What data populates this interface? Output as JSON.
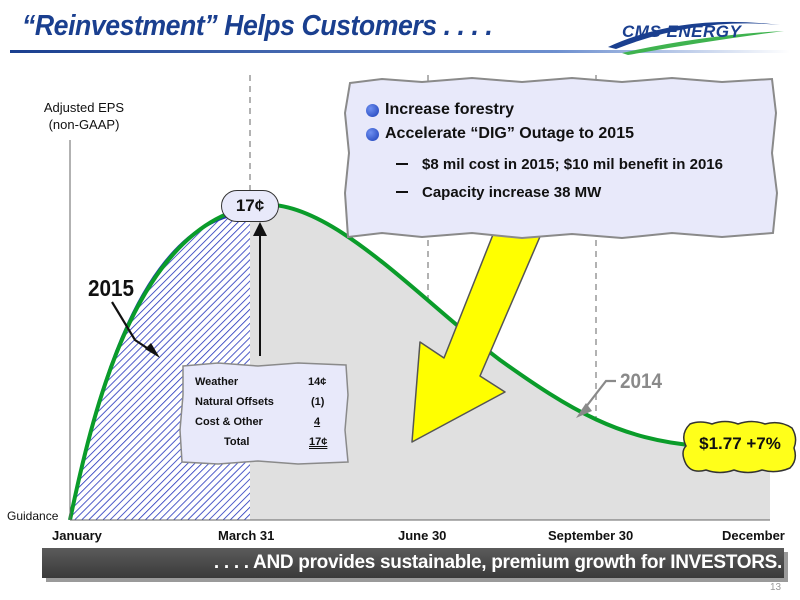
{
  "header": {
    "title": "“Reinvestment” Helps Customers . . . .",
    "logo_text": "CMS ENERGY"
  },
  "colors": {
    "title_blue": "#1a3f8f",
    "curve_2014": "#0a9c2a",
    "hatch_2015": "#2233bb",
    "callout_fill": "#e8e9fa",
    "arrow_yellow": "#ffff00",
    "result_yellow": "#ffff1a"
  },
  "chart_data": {
    "type": "area",
    "ylabel": "Adjusted EPS\n(non-GAAP)",
    "y_baseline_label": "Guidance",
    "x_tick_labels": [
      "January",
      "March 31",
      "June 30",
      "September 30",
      "December"
    ],
    "series": [
      {
        "name": "2014"
      },
      {
        "name": "2015"
      }
    ],
    "callout_value": "17¢",
    "bubble_bullets": [
      "Increase forestry",
      "Accelerate “DIG” Outage to 2015"
    ],
    "bubble_subbullets": [
      "$8 mil cost in 2015; $10 mil benefit in 2016",
      "Capacity increase 38 MW"
    ],
    "table": {
      "rows": [
        {
          "label": "Weather",
          "value": "14¢"
        },
        {
          "label": "Natural Offsets",
          "value": "(1)"
        },
        {
          "label": "Cost & Other",
          "value": "4"
        }
      ],
      "total": {
        "label": "Total",
        "value": "17¢"
      }
    },
    "result_label": "$1.77 +7%"
  },
  "footer": {
    "text": ". . . . AND provides sustainable, premium growth for INVESTORS.",
    "page_number": "13"
  }
}
